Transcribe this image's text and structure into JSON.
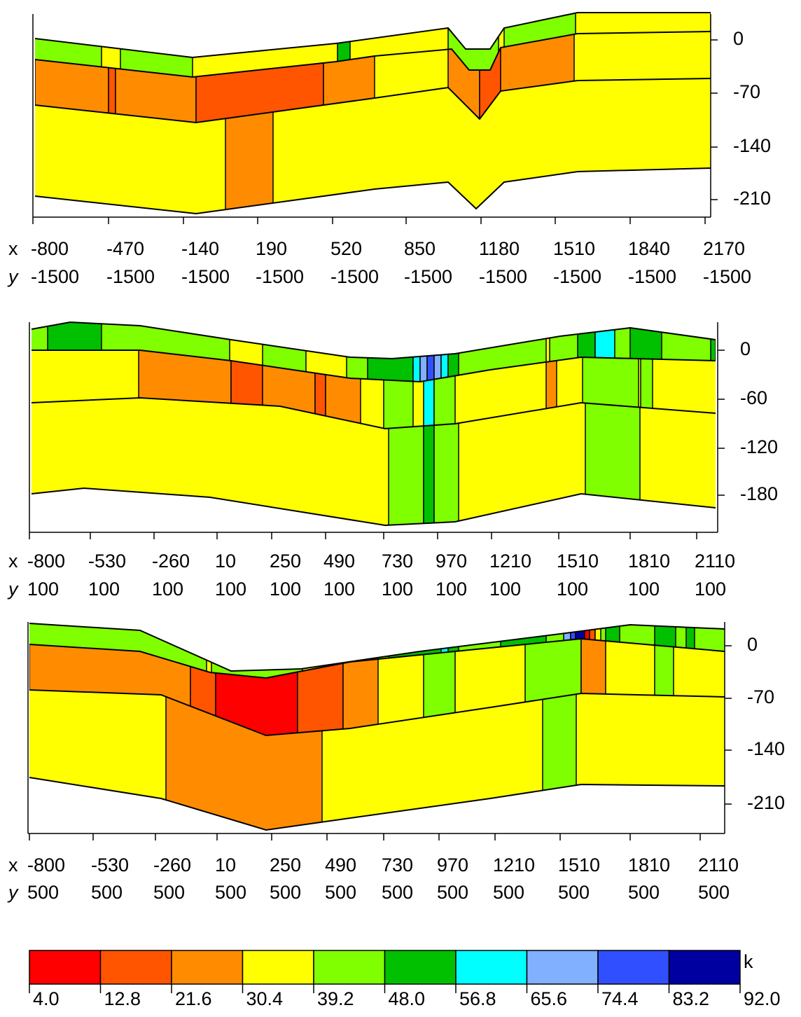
{
  "axis_letters": [
    "x",
    "y"
  ],
  "panels": [
    {
      "x_labels": [
        "-800",
        "-470",
        "-140",
        "190",
        "520",
        "850",
        "1180",
        "1510",
        "1840",
        "2170"
      ],
      "y_labels": [
        "-1500",
        "-1500",
        "-1500",
        "-1500",
        "-1500",
        "-1500",
        "-1500",
        "-1500",
        "-1500",
        "-1500"
      ],
      "depth_ticks": [
        "0",
        "-70",
        "-140",
        "-210"
      ]
    },
    {
      "x_labels": [
        "-800",
        "-530",
        "-260",
        "10",
        "250",
        "490",
        "730",
        "970",
        "1210",
        "1510",
        "1810",
        "2110"
      ],
      "y_labels": [
        "100",
        "100",
        "100",
        "100",
        "100",
        "100",
        "100",
        "100",
        "100",
        "100",
        "100",
        "100"
      ],
      "depth_ticks": [
        "0",
        "-60",
        "-120",
        "-180"
      ]
    },
    {
      "x_labels": [
        "-800",
        "-530",
        "-260",
        "10",
        "250",
        "490",
        "730",
        "970",
        "1210",
        "1510",
        "1810",
        "2110"
      ],
      "y_labels": [
        "500",
        "500",
        "500",
        "500",
        "500",
        "500",
        "500",
        "500",
        "500",
        "500",
        "500",
        "500"
      ],
      "depth_ticks": [
        "0",
        "-70",
        "-140",
        "-210"
      ]
    }
  ],
  "colorbar": {
    "label": "k",
    "ticks": [
      "4.0",
      "12.8",
      "21.6",
      "30.4",
      "39.2",
      "48.0",
      "56.8",
      "65.6",
      "74.4",
      "83.2",
      "92.0"
    ],
    "colors": [
      "#ff0000",
      "#ff5500",
      "#ff8c00",
      "#ffff00",
      "#80ff00",
      "#00c000",
      "#00ffff",
      "#80b0ff",
      "#3050ff",
      "#0000a0"
    ]
  }
}
